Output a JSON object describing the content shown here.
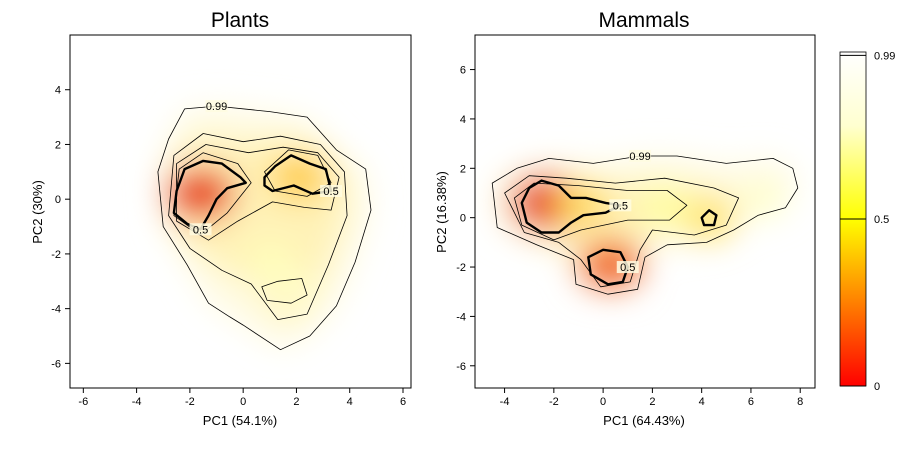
{
  "chart_data": [
    {
      "type": "heatmap",
      "title": "Plants",
      "xlabel": "PC1 (54.1%)",
      "ylabel": "PC2 (30%)",
      "xlim": [
        -6.5,
        6.3
      ],
      "ylim": [
        -6.9,
        6.0
      ],
      "xticks": [
        -6,
        -4,
        -2,
        0,
        2,
        4,
        6
      ],
      "yticks": [
        -6,
        -4,
        -2,
        0,
        2,
        4
      ],
      "grid": false,
      "density_peaks": [
        {
          "x": -1.6,
          "y": 0.2,
          "level": 0.9
        },
        {
          "x": 2.1,
          "y": 0.8,
          "level": 0.55
        },
        {
          "x": 1.0,
          "y": -2.2,
          "level": 0.25
        },
        {
          "x": 1.8,
          "y": -3.2,
          "level": 0.2
        }
      ],
      "contours": [
        {
          "label": "0.99",
          "line": "thin",
          "points": [
            [
              -2.8,
              2.2
            ],
            [
              -2.2,
              3.3
            ],
            [
              -1.0,
              3.4
            ],
            [
              1.0,
              3.2
            ],
            [
              2.4,
              3.0
            ],
            [
              3.5,
              1.8
            ],
            [
              4.6,
              1.1
            ],
            [
              4.8,
              -0.4
            ],
            [
              4.2,
              -2.3
            ],
            [
              3.5,
              -3.9
            ],
            [
              2.5,
              -5.0
            ],
            [
              1.4,
              -5.5
            ],
            [
              0.0,
              -4.6
            ],
            [
              -0.5,
              -4.3
            ],
            [
              -1.3,
              -3.8
            ],
            [
              -2.1,
              -2.4
            ],
            [
              -3.0,
              -1.0
            ],
            [
              -3.2,
              1.0
            ]
          ]
        },
        {
          "label": "",
          "line": "thin",
          "points": [
            [
              -2.6,
              1.6
            ],
            [
              -1.5,
              2.4
            ],
            [
              0.0,
              2.1
            ],
            [
              1.4,
              2.3
            ],
            [
              2.9,
              2.0
            ],
            [
              3.8,
              1.0
            ],
            [
              3.9,
              -0.6
            ],
            [
              3.2,
              -2.4
            ],
            [
              2.4,
              -4.2
            ],
            [
              1.3,
              -4.4
            ],
            [
              0.3,
              -3.1
            ],
            [
              -0.8,
              -2.6
            ],
            [
              -2.0,
              -1.8
            ],
            [
              -2.8,
              -0.6
            ]
          ]
        },
        {
          "label": "",
          "line": "thin",
          "points": [
            [
              -2.5,
              1.3
            ],
            [
              -1.4,
              2.0
            ],
            [
              0.2,
              1.7
            ],
            [
              1.5,
              1.9
            ],
            [
              2.8,
              1.7
            ],
            [
              3.6,
              0.8
            ],
            [
              3.3,
              -0.4
            ],
            [
              2.3,
              -0.3
            ],
            [
              1.1,
              -0.1
            ],
            [
              -0.2,
              -0.8
            ],
            [
              -1.3,
              -1.5
            ],
            [
              -2.5,
              -0.8
            ]
          ]
        },
        {
          "label": "",
          "line": "thin",
          "points": [
            [
              -2.4,
              1.1
            ],
            [
              -1.5,
              1.7
            ],
            [
              -0.2,
              1.3
            ],
            [
              0.3,
              0.6
            ],
            [
              -0.6,
              -0.5
            ],
            [
              -1.6,
              -1.3
            ],
            [
              -2.6,
              -0.6
            ]
          ]
        },
        {
          "label": "",
          "line": "thin",
          "points": [
            [
              0.8,
              1.0
            ],
            [
              1.7,
              1.8
            ],
            [
              2.8,
              1.6
            ],
            [
              3.3,
              0.6
            ],
            [
              2.4,
              0.1
            ],
            [
              1.2,
              0.3
            ]
          ]
        },
        {
          "label": "0.5",
          "line": "thick",
          "points": [
            [
              -2.5,
              0.3
            ],
            [
              -2.2,
              1.1
            ],
            [
              -1.5,
              1.4
            ],
            [
              -0.8,
              1.3
            ],
            [
              -0.1,
              0.8
            ],
            [
              0.1,
              0.6
            ],
            [
              -0.6,
              0.4
            ],
            [
              -1.0,
              0.0
            ],
            [
              -1.3,
              -0.6
            ],
            [
              -1.6,
              -1.1
            ],
            [
              -2.1,
              -0.9
            ],
            [
              -2.6,
              -0.5
            ]
          ]
        },
        {
          "label": "0.5",
          "line": "thick",
          "points": [
            [
              0.8,
              0.8
            ],
            [
              1.2,
              1.2
            ],
            [
              1.8,
              1.6
            ],
            [
              2.5,
              1.3
            ],
            [
              3.1,
              1.1
            ],
            [
              3.3,
              0.3
            ],
            [
              2.6,
              0.2
            ],
            [
              1.9,
              0.5
            ],
            [
              1.1,
              0.3
            ],
            [
              0.8,
              0.5
            ]
          ]
        },
        {
          "label": "",
          "line": "thin",
          "points": [
            [
              0.7,
              -3.2
            ],
            [
              1.3,
              -3.0
            ],
            [
              2.2,
              -2.9
            ],
            [
              2.4,
              -3.5
            ],
            [
              1.8,
              -3.8
            ],
            [
              0.9,
              -3.7
            ]
          ]
        }
      ]
    },
    {
      "type": "heatmap",
      "title": "Mammals",
      "xlabel": "PC1 (64.43%)",
      "ylabel": "PC2 (16.38%)",
      "xlim": [
        -5.2,
        8.6
      ],
      "ylim": [
        -6.9,
        7.4
      ],
      "xticks": [
        -4,
        -2,
        0,
        2,
        4,
        6,
        8
      ],
      "yticks": [
        -6,
        -4,
        -2,
        0,
        2,
        4,
        6
      ],
      "grid": false,
      "density_peaks": [
        {
          "x": -2.3,
          "y": 0.6,
          "level": 0.95
        },
        {
          "x": -0.9,
          "y": 0.6,
          "level": 0.5
        },
        {
          "x": 0.3,
          "y": -1.9,
          "level": 0.8
        },
        {
          "x": 4.3,
          "y": -0.1,
          "level": 0.45
        },
        {
          "x": 2.5,
          "y": 0.4,
          "level": 0.35
        },
        {
          "x": 6.5,
          "y": 0.7,
          "level": 0.2
        }
      ],
      "contours": [
        {
          "label": "0.99",
          "line": "thin",
          "points": [
            [
              -4.5,
              1.4
            ],
            [
              -3.5,
              2.0
            ],
            [
              -2.2,
              2.4
            ],
            [
              -0.4,
              2.2
            ],
            [
              1.5,
              2.5
            ],
            [
              3.0,
              2.5
            ],
            [
              5.0,
              2.2
            ],
            [
              6.9,
              2.4
            ],
            [
              7.7,
              2.0
            ],
            [
              7.9,
              1.2
            ],
            [
              7.4,
              0.4
            ],
            [
              6.3,
              0.1
            ],
            [
              5.3,
              -0.5
            ],
            [
              4.2,
              -1.0
            ],
            [
              2.6,
              -1.1
            ],
            [
              1.7,
              -1.6
            ],
            [
              1.4,
              -2.9
            ],
            [
              0.2,
              -3.1
            ],
            [
              -1.1,
              -2.7
            ],
            [
              -1.2,
              -1.7
            ],
            [
              -2.7,
              -1.1
            ],
            [
              -4.3,
              -0.4
            ]
          ]
        },
        {
          "label": "",
          "line": "thin",
          "points": [
            [
              -4.0,
              1.0
            ],
            [
              -3.0,
              1.7
            ],
            [
              -1.5,
              1.6
            ],
            [
              0.5,
              1.4
            ],
            [
              2.5,
              1.6
            ],
            [
              4.5,
              1.2
            ],
            [
              5.5,
              0.8
            ],
            [
              5.0,
              -0.3
            ],
            [
              3.7,
              -0.7
            ],
            [
              2.0,
              -0.5
            ],
            [
              1.5,
              -1.3
            ],
            [
              1.1,
              -2.6
            ],
            [
              -0.1,
              -2.8
            ],
            [
              -0.9,
              -1.7
            ],
            [
              -1.8,
              -1.0
            ],
            [
              -3.2,
              -0.6
            ]
          ]
        },
        {
          "label": "",
          "line": "thin",
          "points": [
            [
              -3.6,
              0.8
            ],
            [
              -2.8,
              1.4
            ],
            [
              -1.0,
              1.3
            ],
            [
              1.0,
              1.1
            ],
            [
              2.6,
              1.1
            ],
            [
              3.4,
              0.5
            ],
            [
              2.7,
              -0.1
            ],
            [
              1.0,
              -0.1
            ],
            [
              -0.9,
              -0.5
            ],
            [
              -2.0,
              -0.9
            ],
            [
              -3.3,
              -0.3
            ]
          ]
        },
        {
          "label": "0.5",
          "line": "thick",
          "points": [
            [
              -3.3,
              0.6
            ],
            [
              -3.0,
              1.2
            ],
            [
              -2.5,
              1.5
            ],
            [
              -1.8,
              1.3
            ],
            [
              -1.3,
              0.8
            ],
            [
              -0.7,
              0.8
            ],
            [
              0.1,
              0.6
            ],
            [
              0.7,
              0.5
            ],
            [
              0.1,
              0.2
            ],
            [
              -0.8,
              0.1
            ],
            [
              -1.3,
              -0.2
            ],
            [
              -1.8,
              -0.6
            ],
            [
              -2.5,
              -0.6
            ],
            [
              -3.1,
              -0.2
            ]
          ]
        },
        {
          "label": "0.5",
          "line": "thick",
          "points": [
            [
              -0.6,
              -1.6
            ],
            [
              0.0,
              -1.3
            ],
            [
              0.7,
              -1.4
            ],
            [
              1.0,
              -2.0
            ],
            [
              0.8,
              -2.6
            ],
            [
              0.2,
              -2.7
            ],
            [
              -0.5,
              -2.3
            ]
          ]
        },
        {
          "label": "",
          "line": "thick",
          "points": [
            [
              4.0,
              0.0
            ],
            [
              4.3,
              0.3
            ],
            [
              4.6,
              0.1
            ],
            [
              4.5,
              -0.3
            ],
            [
              4.1,
              -0.3
            ]
          ]
        }
      ]
    }
  ],
  "colorbar": {
    "ticks": [
      {
        "label": "0.99",
        "value": 0.99
      },
      {
        "label": "0.5",
        "value": 0.5
      },
      {
        "label": "0",
        "value": 0
      }
    ],
    "colors": [
      "#ff0000",
      "#ff8000",
      "#ffff00",
      "#ffffe0",
      "#ffffff"
    ]
  }
}
